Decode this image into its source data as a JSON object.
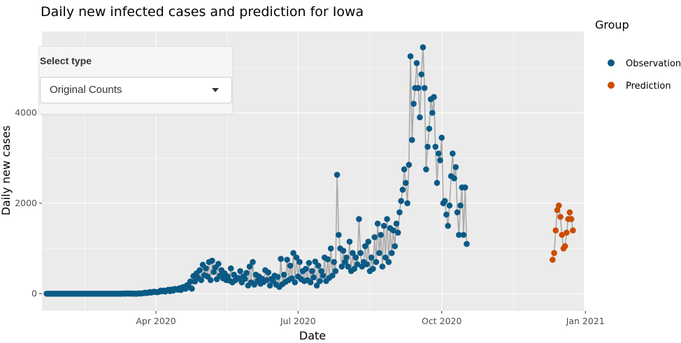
{
  "chart_data": {
    "type": "scatter",
    "title": "Daily new infected cases and prediction for Iowa",
    "xlabel": "Date",
    "ylabel": "Daily new cases",
    "xlim": [
      "2020-01-19",
      "2020-12-31"
    ],
    "ylim": [
      -380,
      5800
    ],
    "x_ticks": [
      {
        "date": "2020-04-01",
        "label": "Apr 2020"
      },
      {
        "date": "2020-07-01",
        "label": "Jul 2020"
      },
      {
        "date": "2020-10-01",
        "label": "Oct 2020"
      },
      {
        "date": "2021-01-01",
        "label": "Jan 2021"
      }
    ],
    "y_ticks": [
      0,
      2000,
      4000
    ],
    "grid": true,
    "legend": {
      "title": "Group",
      "position": "right"
    },
    "line_color": "#aaaaaa",
    "series": [
      {
        "name": "Observation",
        "color": "#0b5a86",
        "start_date": "2020-01-22",
        "values": [
          0,
          0,
          0,
          0,
          0,
          0,
          0,
          0,
          0,
          0,
          0,
          0,
          0,
          0,
          0,
          0,
          0,
          0,
          0,
          0,
          0,
          0,
          0,
          0,
          0,
          0,
          0,
          0,
          0,
          0,
          0,
          0,
          0,
          0,
          0,
          0,
          0,
          0,
          0,
          0,
          0,
          0,
          0,
          0,
          0,
          0,
          0,
          0,
          0,
          3,
          0,
          4,
          5,
          2,
          5,
          0,
          3,
          0,
          0,
          8,
          5,
          6,
          13,
          22,
          15,
          20,
          37,
          25,
          38,
          45,
          36,
          34,
          44,
          69,
          55,
          70,
          47,
          73,
          86,
          58,
          93,
          67,
          105,
          96,
          87,
          120,
          80,
          140,
          150,
          110,
          189,
          146,
          270,
          110,
          389,
          270,
          450,
          350,
          520,
          300,
          640,
          410,
          560,
          380,
          700,
          300,
          730,
          480,
          580,
          320,
          660,
          400,
          520,
          340,
          450,
          300,
          380,
          290,
          560,
          250,
          420,
          300,
          350,
          340,
          500,
          250,
          380,
          330,
          460,
          180,
          600,
          250,
          700,
          200,
          420,
          280,
          380,
          220,
          330,
          260,
          520,
          300,
          470,
          180,
          330,
          280,
          400,
          200,
          370,
          150,
          770,
          210,
          420,
          260,
          750,
          300,
          620,
          340,
          900,
          250,
          800,
          380,
          700,
          320,
          500,
          280,
          550,
          300,
          680,
          250,
          500,
          360,
          710,
          180,
          620,
          280,
          500,
          400,
          800,
          280,
          760,
          350,
          1000,
          400,
          700,
          500,
          2630,
          1300,
          1000,
          600,
          950,
          700,
          800,
          600,
          1150,
          500,
          900,
          550,
          800,
          650,
          1650,
          900,
          600,
          700,
          1050,
          650,
          1150,
          500,
          800,
          550,
          1250,
          700,
          1550,
          900,
          1300,
          600,
          1500,
          800,
          1650,
          700,
          1450,
          900,
          1400,
          1050,
          1550,
          1350,
          1800,
          2050,
          2300,
          2750,
          2450,
          2000,
          2850,
          5250,
          3400,
          4200,
          4550,
          5100,
          4550,
          3900,
          4850,
          5450,
          4550,
          2750,
          3250,
          3650,
          4300,
          4000,
          4350,
          3250,
          2450,
          3100,
          2950,
          3450,
          2000,
          2050,
          1750,
          1500,
          1950,
          2600,
          3100,
          2550,
          2800,
          1800,
          1300,
          1950,
          2350,
          1300,
          2350,
          1100
        ]
      },
      {
        "name": "Prediction",
        "color": "#cc4c02",
        "start_date": "2020-12-11",
        "values": [
          750,
          900,
          1400,
          1850,
          1950,
          1700,
          1300,
          1000,
          1050,
          1350,
          1650,
          1800,
          1650,
          1400
        ]
      }
    ]
  },
  "panel": {
    "select_label": "Select type",
    "selected_option": "Original Counts",
    "caret_icon": "chevron-down-icon"
  }
}
